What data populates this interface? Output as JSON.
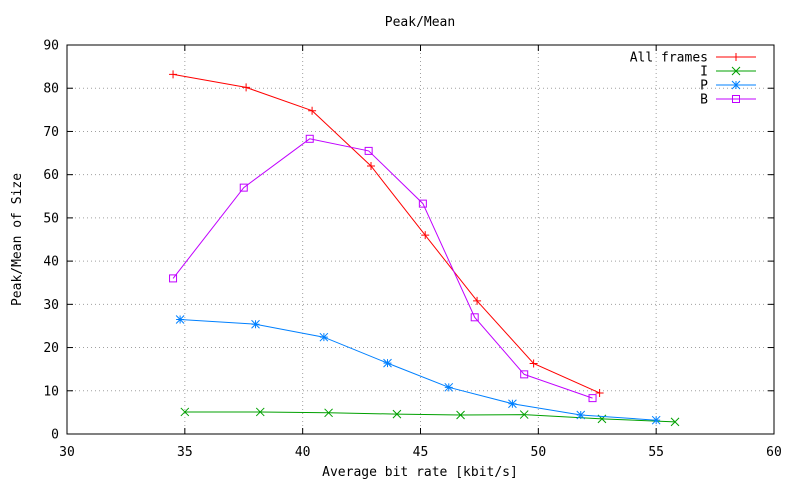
{
  "chart_data": {
    "type": "line",
    "title": "Peak/Mean",
    "xlabel": "Average bit rate [kbit/s]",
    "ylabel": "Peak/Mean of Size",
    "xlim": [
      30,
      60
    ],
    "ylim": [
      0,
      90
    ],
    "xticks": [
      30,
      35,
      40,
      45,
      50,
      55,
      60
    ],
    "yticks": [
      0,
      10,
      20,
      30,
      40,
      50,
      60,
      70,
      80,
      90
    ],
    "grid": true,
    "legend_position": "top-right",
    "series": [
      {
        "name": "All frames",
        "color": "#ff0000",
        "marker": "plus",
        "points": [
          [
            34.5,
            83.2
          ],
          [
            37.6,
            80.2
          ],
          [
            40.4,
            74.8
          ],
          [
            42.9,
            62.0
          ],
          [
            45.2,
            46.0
          ],
          [
            47.4,
            30.8
          ],
          [
            49.8,
            16.3
          ],
          [
            52.6,
            9.5
          ]
        ]
      },
      {
        "name": "I",
        "color": "#00a000",
        "marker": "x",
        "points": [
          [
            35.0,
            5.1
          ],
          [
            38.2,
            5.1
          ],
          [
            41.1,
            4.9
          ],
          [
            44.0,
            4.6
          ],
          [
            46.7,
            4.4
          ],
          [
            49.4,
            4.5
          ],
          [
            52.7,
            3.5
          ],
          [
            55.8,
            2.8
          ]
        ]
      },
      {
        "name": "P",
        "color": "#0080ff",
        "marker": "star",
        "points": [
          [
            34.8,
            26.5
          ],
          [
            38.0,
            25.4
          ],
          [
            40.9,
            22.4
          ],
          [
            43.6,
            16.4
          ],
          [
            46.2,
            10.8
          ],
          [
            48.9,
            7.0
          ],
          [
            51.8,
            4.4
          ],
          [
            55.0,
            3.2
          ]
        ]
      },
      {
        "name": "B",
        "color": "#c000ff",
        "marker": "square",
        "points": [
          [
            34.5,
            36.0
          ],
          [
            37.5,
            57.0
          ],
          [
            40.3,
            68.3
          ],
          [
            42.8,
            65.5
          ],
          [
            45.1,
            53.3
          ],
          [
            47.3,
            27.0
          ],
          [
            49.4,
            13.8
          ],
          [
            52.3,
            8.3
          ]
        ]
      }
    ]
  }
}
